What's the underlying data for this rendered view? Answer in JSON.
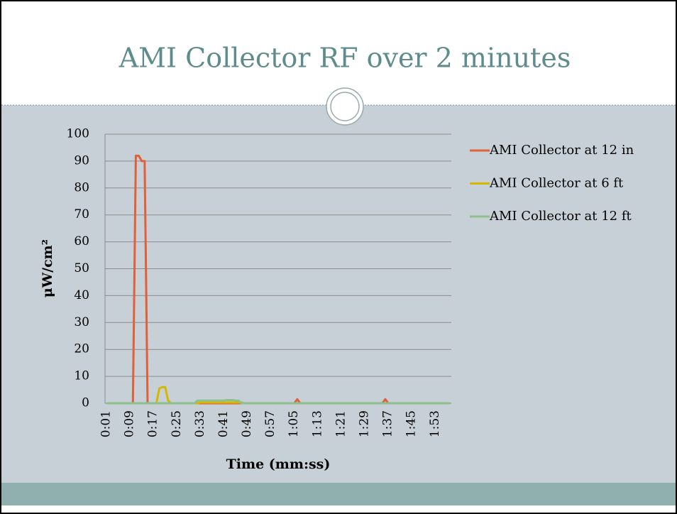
{
  "chart_data": {
    "type": "line",
    "title": "AMI Collector RF over 2 minutes",
    "x_label": "Time (mm:ss)",
    "y_label": "μW/cm²",
    "categories": [
      "0:01",
      null,
      null,
      null,
      null,
      null,
      null,
      null,
      "0:09",
      null,
      null,
      null,
      null,
      null,
      null,
      null,
      "0:17",
      null,
      null,
      null,
      null,
      null,
      null,
      null,
      "0:25",
      null,
      null,
      null,
      null,
      null,
      null,
      null,
      "0:33",
      null,
      null,
      null,
      null,
      null,
      null,
      null,
      "0:41",
      null,
      null,
      null,
      null,
      null,
      null,
      null,
      "0:49",
      null,
      null,
      null,
      null,
      null,
      null,
      null,
      "0:57",
      null,
      null,
      null,
      null,
      null,
      null,
      null,
      "1:05",
      null,
      null,
      null,
      null,
      null,
      null,
      null,
      "1:13",
      null,
      null,
      null,
      null,
      null,
      null,
      null,
      "1:21",
      null,
      null,
      null,
      null,
      null,
      null,
      null,
      "1:29",
      null,
      null,
      null,
      null,
      null,
      null,
      null,
      "1:37",
      null,
      null,
      null,
      null,
      null,
      null,
      null,
      "1:45",
      null,
      null,
      null,
      null,
      null,
      null,
      null,
      "1:53",
      null,
      null,
      null,
      null,
      null
    ],
    "series": [
      {
        "name": "AMI Collector at 12 in",
        "color": "#e0603a",
        "values": [
          0,
          0,
          0,
          0,
          0,
          0,
          0,
          0,
          0,
          0,
          92,
          92,
          90,
          90,
          0,
          0,
          0,
          0,
          0,
          0,
          0,
          0,
          0,
          0,
          0,
          0,
          0,
          0,
          0,
          0,
          0,
          0,
          0,
          0,
          0,
          0,
          0,
          0,
          0,
          0,
          0,
          0,
          0,
          0,
          0,
          0,
          0,
          0,
          0,
          0,
          0,
          0,
          0,
          0,
          0,
          0,
          0,
          0,
          0,
          0,
          0,
          0,
          0,
          0,
          0,
          1.5,
          0,
          0,
          0,
          0,
          0,
          0,
          0,
          0,
          0,
          0,
          0,
          0,
          0,
          0,
          0,
          0,
          0,
          0,
          0,
          0,
          0,
          0,
          0,
          0,
          0,
          0,
          0,
          0,
          0,
          1.5,
          0,
          0,
          0,
          0,
          0,
          0,
          0,
          0,
          0,
          0,
          0,
          0,
          0,
          0,
          0,
          0,
          0,
          0,
          0,
          0,
          0,
          0
        ]
      },
      {
        "name": "AMI Collector at 6 ft",
        "color": "#d4b800",
        "values": [
          0,
          0,
          0,
          0,
          0,
          0,
          0,
          0,
          0,
          0,
          0,
          0,
          0,
          0,
          0,
          0,
          0,
          0,
          5.5,
          6,
          6,
          1,
          0,
          0,
          0,
          0,
          0,
          0,
          0,
          0,
          0,
          0,
          0.3,
          0.3,
          0.3,
          0.3,
          0.3,
          0.3,
          0.3,
          0.3,
          0.3,
          0.3,
          0.3,
          0.3,
          0.3,
          0.3,
          0.3,
          0,
          0,
          0,
          0,
          0,
          0,
          0,
          0,
          0,
          0,
          0,
          0,
          0,
          0,
          0,
          0,
          0,
          0,
          0,
          0,
          0,
          0,
          0,
          0,
          0,
          0,
          0,
          0,
          0,
          0,
          0,
          0,
          0,
          0,
          0,
          0,
          0,
          0,
          0,
          0,
          0,
          0,
          0,
          0,
          0,
          0,
          0,
          0,
          0,
          0,
          0,
          0,
          0,
          0,
          0,
          0,
          0,
          0,
          0,
          0,
          0,
          0,
          0,
          0,
          0,
          0,
          0,
          0,
          0,
          0,
          0
        ]
      },
      {
        "name": "AMI Collector at 12 ft",
        "color": "#8fbf8f",
        "values": [
          0,
          0,
          0,
          0,
          0,
          0,
          0,
          0,
          0,
          0,
          0,
          0,
          0,
          0,
          0,
          0,
          0,
          0,
          0,
          0,
          0,
          0,
          0,
          0,
          0,
          0,
          0,
          0,
          0,
          0,
          0,
          1,
          1,
          1,
          1,
          1,
          1,
          1,
          1,
          1,
          1,
          1.2,
          1.2,
          1.2,
          1,
          1,
          0,
          0,
          0,
          0,
          0,
          0,
          0,
          0,
          0,
          0,
          0,
          0,
          0,
          0,
          0,
          0,
          0,
          0,
          0,
          0,
          0,
          0,
          0,
          0,
          0,
          0,
          0,
          0,
          0,
          0,
          0,
          0,
          0,
          0,
          0,
          0,
          0,
          0,
          0,
          0,
          0,
          0,
          0,
          0,
          0,
          0,
          0,
          0,
          0,
          0,
          0,
          0,
          0,
          0,
          0,
          0,
          0,
          0,
          0,
          0,
          0,
          0,
          0,
          0,
          0,
          0,
          0,
          0,
          0,
          0,
          0,
          0
        ]
      }
    ],
    "ylim": [
      0,
      100
    ],
    "yticks": [
      0,
      10,
      20,
      30,
      40,
      50,
      60,
      70,
      80,
      90,
      100
    ],
    "grid": true,
    "legend": "right"
  }
}
